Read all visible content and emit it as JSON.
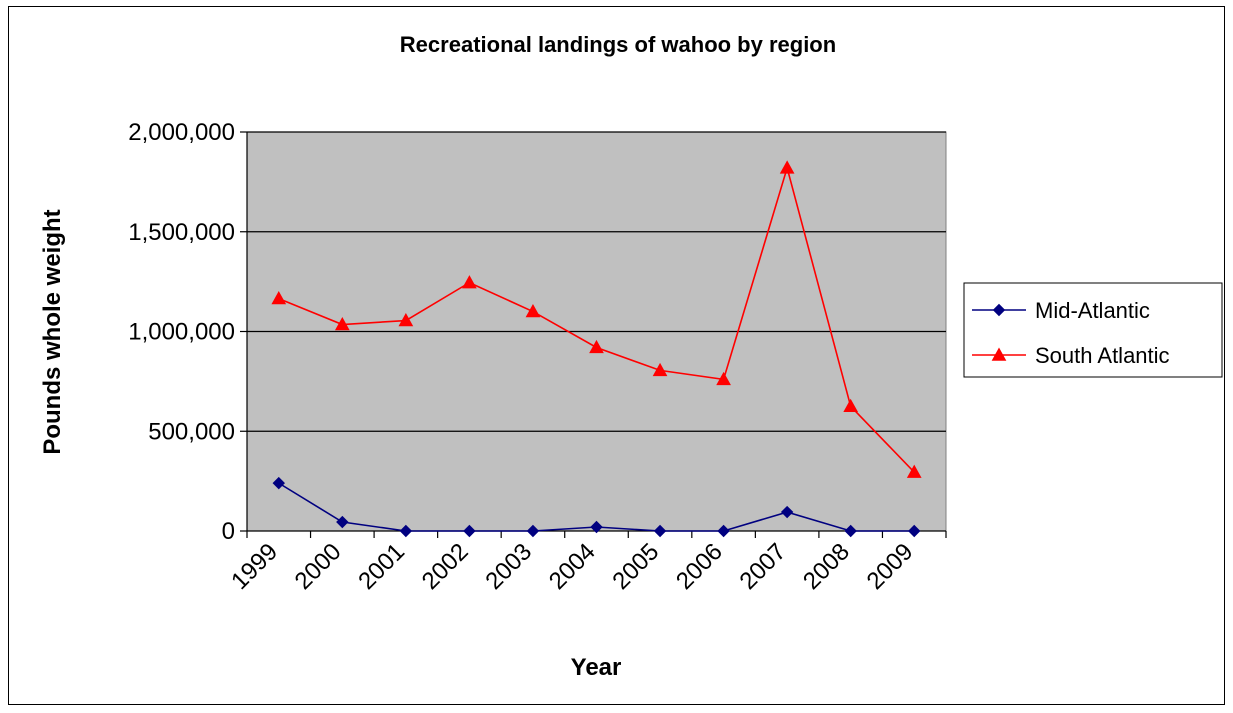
{
  "chart_data": {
    "type": "line",
    "title": "Recreational landings of wahoo by region",
    "xlabel": "Year",
    "ylabel": "Pounds whole weight",
    "categories": [
      "1999",
      "2000",
      "2001",
      "2002",
      "2003",
      "2004",
      "2005",
      "2006",
      "2007",
      "2008",
      "2009"
    ],
    "ylim": [
      0,
      2000000
    ],
    "yticks": [
      0,
      500000,
      1000000,
      1500000,
      2000000
    ],
    "ytick_labels": [
      "0",
      "500,000",
      "1,000,000",
      "1,500,000",
      "2,000,000"
    ],
    "grid": true,
    "legend_position": "right",
    "plot_background": "#c0c0c0",
    "series": [
      {
        "name": "Mid-Atlantic",
        "color": "#000080",
        "marker": "diamond",
        "values": [
          240000,
          45000,
          0,
          0,
          0,
          20000,
          0,
          0,
          95000,
          0,
          0
        ]
      },
      {
        "name": "South Atlantic",
        "color": "#ff0000",
        "marker": "triangle",
        "values": [
          1165000,
          1035000,
          1055000,
          1245000,
          1100000,
          920000,
          805000,
          760000,
          1820000,
          625000,
          295000
        ]
      }
    ]
  }
}
